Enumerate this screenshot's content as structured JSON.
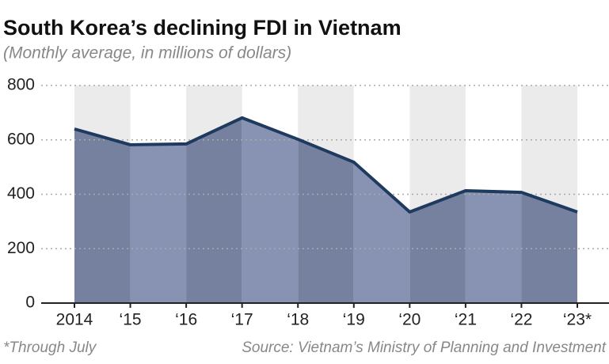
{
  "chart_data": {
    "type": "area",
    "title": "South Korea’s declining FDI in Vietnam",
    "subtitle": "(Monthly average, in millions of dollars)",
    "categories": [
      "2014",
      "‘15",
      "‘16",
      "‘17",
      "‘18",
      "‘19",
      "‘20",
      "‘21",
      "‘22",
      "‘23*"
    ],
    "values": [
      640,
      582,
      585,
      681,
      602,
      518,
      335,
      413,
      407,
      335
    ],
    "color": "#1f3a5f",
    "area_colors": [
      "#75819f",
      "#8893b3"
    ],
    "band_color": "#ebebeb",
    "ylim": [
      0,
      800
    ],
    "yticks": [
      0,
      200,
      400,
      600,
      800
    ],
    "grid": true,
    "footnote": "*Through July",
    "source": "Source: Vietnam’s Ministry of Planning and Investment"
  }
}
